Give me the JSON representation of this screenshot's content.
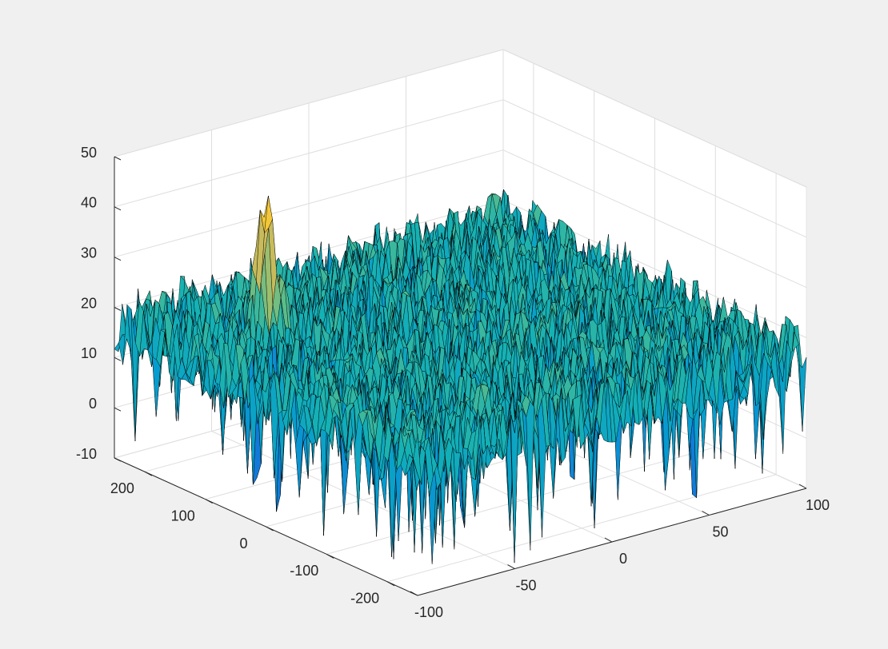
{
  "chart_data": {
    "type": "surface",
    "title": "",
    "xlabel": "",
    "ylabel": "",
    "zlabel": "",
    "xlim": [
      -100,
      100
    ],
    "ylim": [
      -250,
      250
    ],
    "zlim": [
      -10,
      50
    ],
    "x_ticks": [
      {
        "value": -100,
        "label": "-100"
      },
      {
        "value": -50,
        "label": "-50"
      },
      {
        "value": 0,
        "label": "0"
      },
      {
        "value": 50,
        "label": "50"
      },
      {
        "value": 100,
        "label": "100"
      }
    ],
    "y_ticks": [
      {
        "value": -200,
        "label": "-200"
      },
      {
        "value": -100,
        "label": "-100"
      },
      {
        "value": 0,
        "label": "0"
      },
      {
        "value": 100,
        "label": "100"
      },
      {
        "value": 200,
        "label": "200"
      }
    ],
    "z_ticks": [
      {
        "value": -10,
        "label": "-10"
      },
      {
        "value": 0,
        "label": "0"
      },
      {
        "value": 10,
        "label": "10"
      },
      {
        "value": 20,
        "label": "20"
      },
      {
        "value": 30,
        "label": "30"
      },
      {
        "value": 40,
        "label": "40"
      },
      {
        "value": 50,
        "label": "50"
      }
    ],
    "grid": true,
    "colormap": "parula",
    "noise_floor_mean": 16,
    "noise_amplitude": 7,
    "peak": {
      "x": -62,
      "y": 120,
      "z": 43,
      "sigma_x": 4,
      "sigma_y": 12
    },
    "colors": {
      "background": "#f0f0f0",
      "axes": "#ffffff",
      "grid": "#e6e6e6",
      "edges": "#000000"
    }
  }
}
